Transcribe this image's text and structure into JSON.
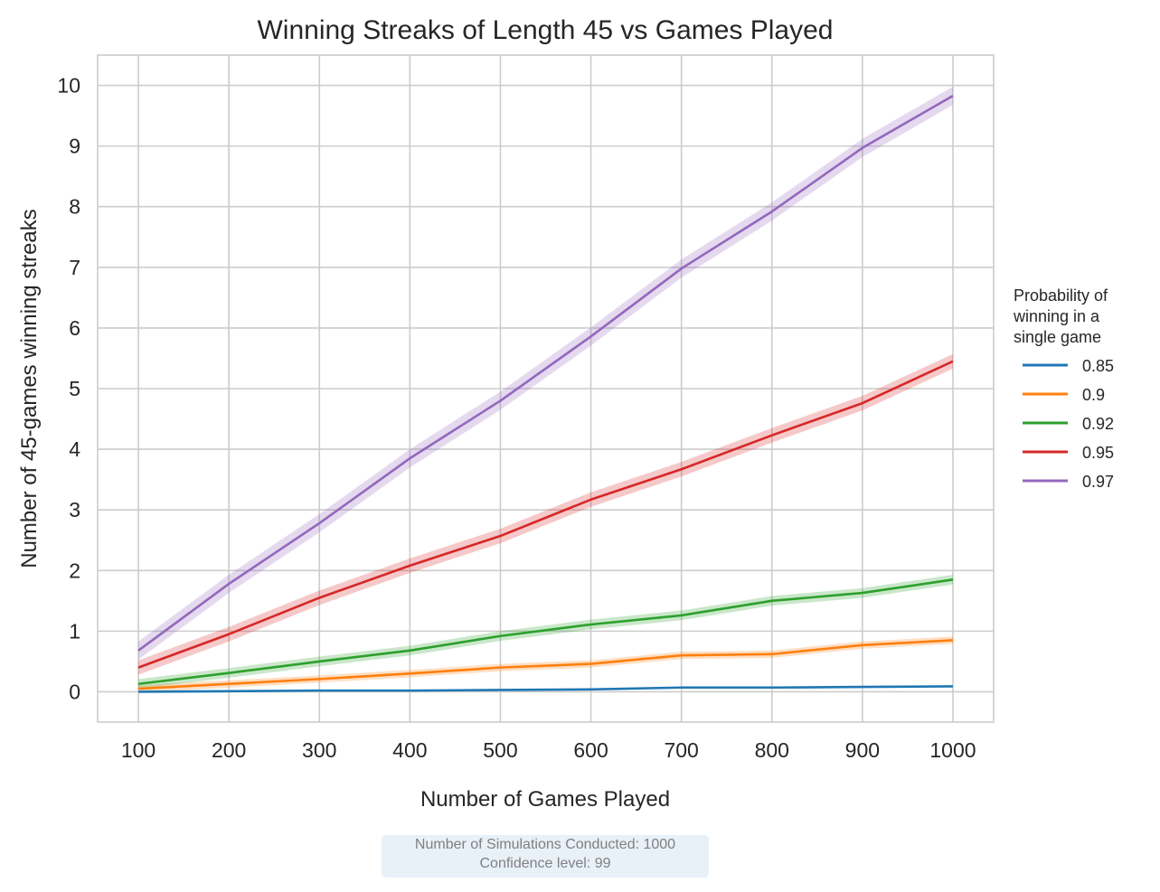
{
  "chart_data": {
    "type": "line",
    "title": "Winning Streaks of Length 45 vs Games Played",
    "xlabel": "Number of Games Played",
    "ylabel": "Number of 45-games winning streaks",
    "x": [
      100,
      200,
      300,
      400,
      500,
      600,
      700,
      800,
      900,
      1000
    ],
    "xticks": [
      "100",
      "200",
      "300",
      "400",
      "500",
      "600",
      "700",
      "800",
      "900",
      "1000"
    ],
    "yticks": [
      "0",
      "1",
      "2",
      "3",
      "4",
      "5",
      "6",
      "7",
      "8",
      "9",
      "10"
    ],
    "xlim": [
      55,
      1045
    ],
    "ylim": [
      -0.5,
      10.5
    ],
    "grid": true,
    "legend_title": "Probability of\nwinning in a\nsingle game",
    "legend_position": "right, outside plot",
    "series": [
      {
        "name": "0.85",
        "color": "#1f77b4",
        "values": [
          0.0,
          0.01,
          0.02,
          0.02,
          0.03,
          0.04,
          0.07,
          0.07,
          0.08,
          0.09
        ],
        "ci": 0.01
      },
      {
        "name": "0.9",
        "color": "#ff7f0e",
        "values": [
          0.05,
          0.13,
          0.21,
          0.3,
          0.4,
          0.46,
          0.6,
          0.62,
          0.77,
          0.85
        ],
        "ci": 0.06
      },
      {
        "name": "0.92",
        "color": "#2ca02c",
        "values": [
          0.13,
          0.31,
          0.5,
          0.68,
          0.92,
          1.11,
          1.26,
          1.5,
          1.63,
          1.85
        ],
        "ci": 0.08
      },
      {
        "name": "0.95",
        "color": "#d62728",
        "values": [
          0.4,
          0.95,
          1.55,
          2.08,
          2.57,
          3.17,
          3.67,
          4.23,
          4.76,
          5.45
        ],
        "ci": 0.12
      },
      {
        "name": "0.97",
        "color": "#9467bd",
        "values": [
          0.68,
          1.78,
          2.78,
          3.85,
          4.8,
          5.86,
          6.98,
          7.92,
          8.97,
          9.83
        ],
        "ci": 0.15
      }
    ]
  },
  "note": {
    "line1": "Number of Simulations Conducted: 1000",
    "line2": "Confidence level: 99"
  }
}
